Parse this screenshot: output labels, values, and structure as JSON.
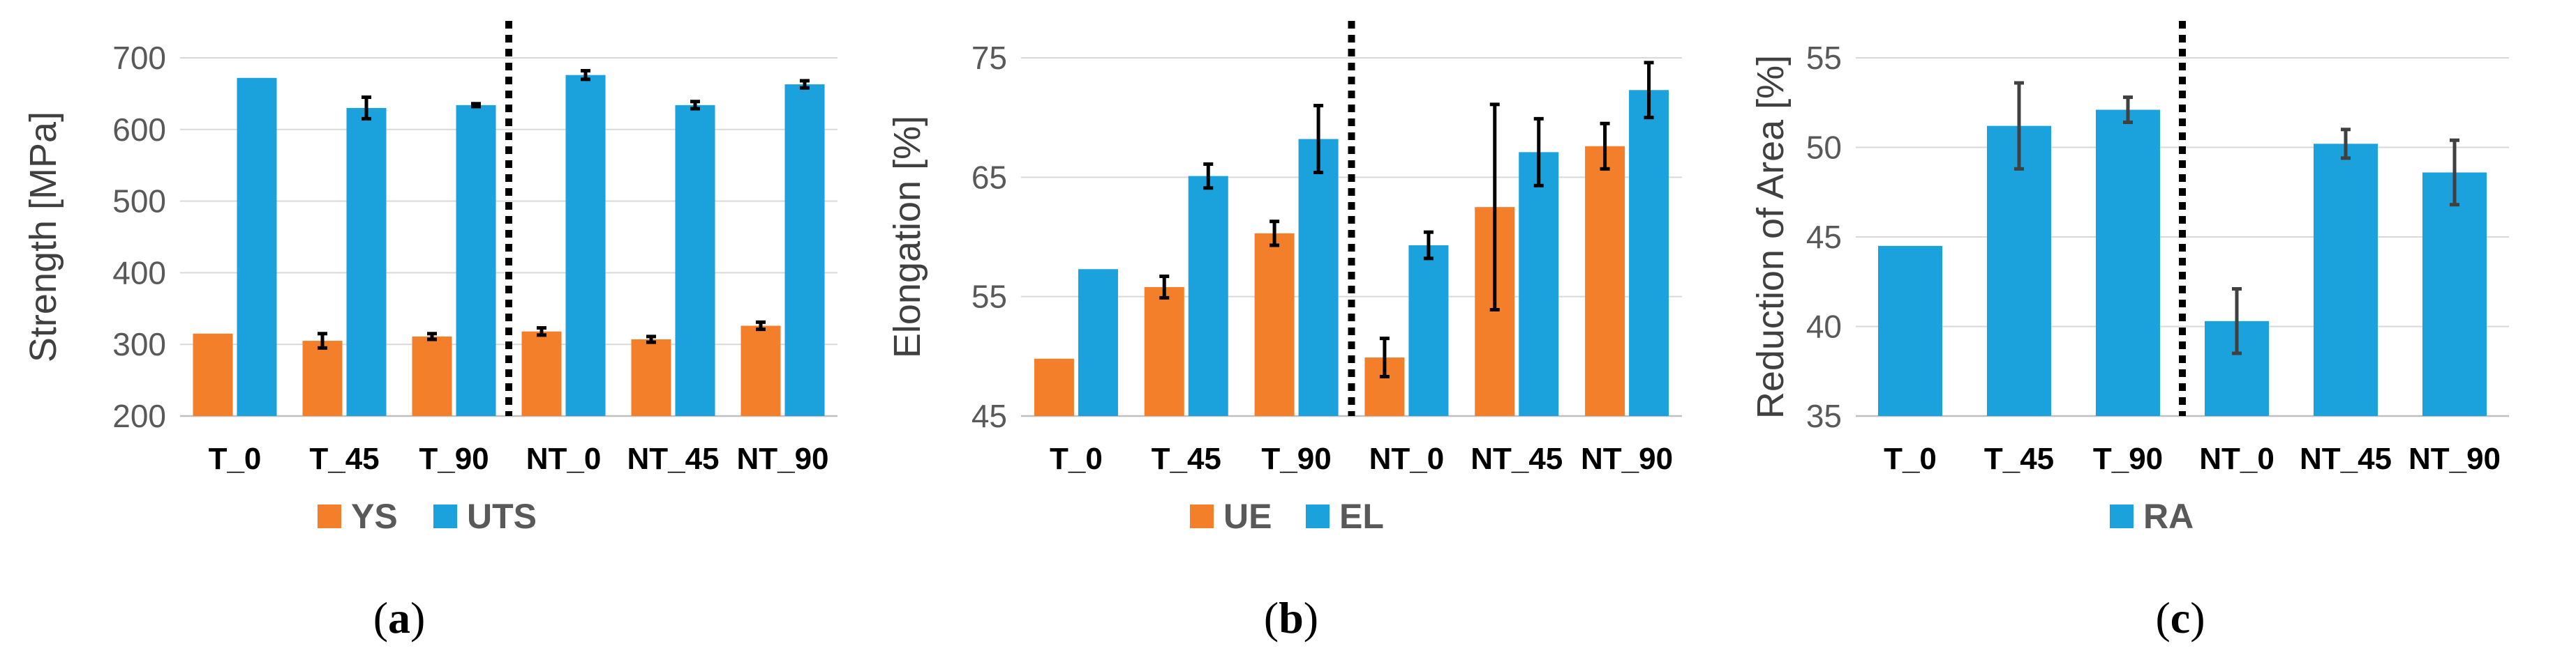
{
  "chart_data": [
    {
      "type": "bar",
      "ylabel": "Strength [MPa]",
      "yticks": [
        200,
        300,
        400,
        500,
        600,
        700
      ],
      "ylim": [
        200,
        700
      ],
      "categories": [
        "T_0",
        "T_45",
        "T_90",
        "NT_0",
        "NT_45",
        "NT_90"
      ],
      "series": [
        {
          "name": "YS",
          "color": "#f47f2a",
          "values": [
            315,
            305,
            311,
            318,
            307,
            326
          ],
          "errors": [
            0,
            10,
            4,
            5,
            4,
            5
          ],
          "error_color": "#000000"
        },
        {
          "name": "UTS",
          "color": "#1ba1dc",
          "values": [
            672,
            630,
            634,
            676,
            634,
            663
          ],
          "errors": [
            0,
            15,
            2,
            6,
            5,
            5
          ],
          "error_color": "#000000"
        }
      ],
      "divider_after_index": 2,
      "legend": "bottom",
      "caption": "a"
    },
    {
      "type": "bar",
      "ylabel": "Elongation [%]",
      "yticks": [
        45,
        55,
        65,
        75
      ],
      "ylim": [
        45,
        75
      ],
      "categories": [
        "T_0",
        "T_45",
        "T_90",
        "NT_0",
        "NT_45",
        "NT_90"
      ],
      "series": [
        {
          "name": "UE",
          "color": "#f47f2a",
          "values": [
            49.8,
            55.8,
            60.3,
            49.9,
            62.5,
            67.6
          ],
          "errors": [
            0,
            0.9,
            1.0,
            1.6,
            8.6,
            1.9
          ],
          "error_color": "#000000"
        },
        {
          "name": "EL",
          "color": "#1ba1dc",
          "values": [
            57.3,
            65.1,
            68.2,
            59.3,
            67.1,
            72.3
          ],
          "errors": [
            0,
            1.0,
            2.8,
            1.1,
            2.8,
            2.3
          ],
          "error_color": "#000000"
        }
      ],
      "divider_after_index": 2,
      "legend": "bottom",
      "caption": "b"
    },
    {
      "type": "bar",
      "ylabel": "Reduction of Area [%]",
      "yticks": [
        35,
        40,
        45,
        50,
        55
      ],
      "ylim": [
        35,
        55
      ],
      "categories": [
        "T_0",
        "T_45",
        "T_90",
        "NT_0",
        "NT_45",
        "NT_90"
      ],
      "series": [
        {
          "name": "RA",
          "color": "#1ba1dc",
          "values": [
            44.5,
            51.2,
            52.1,
            40.3,
            50.2,
            48.6
          ],
          "errors": [
            0,
            2.4,
            0.7,
            1.8,
            0.8,
            1.8
          ],
          "error_color": "#404040"
        }
      ],
      "divider_after_index": 2,
      "legend": "bottom",
      "caption": "c"
    }
  ]
}
